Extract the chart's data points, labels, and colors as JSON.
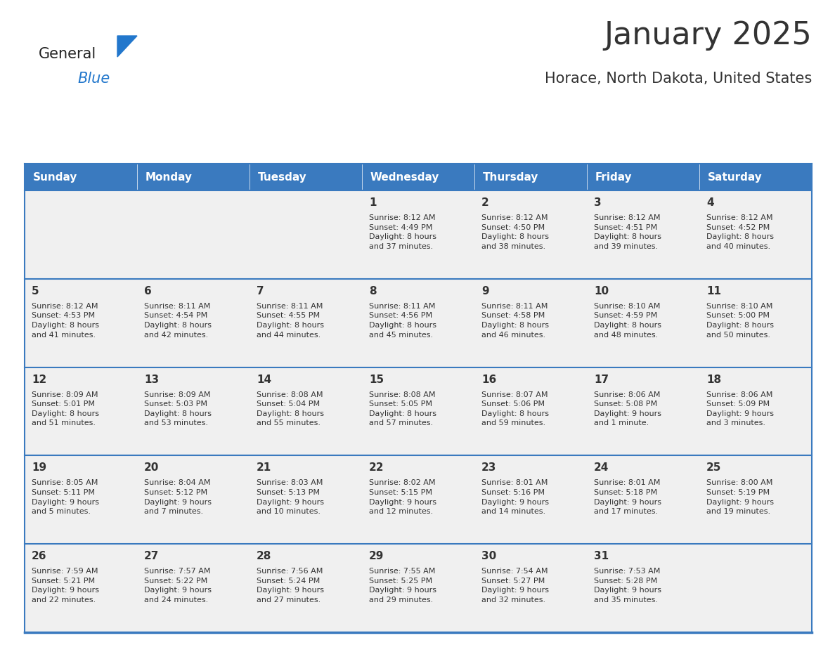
{
  "title": "January 2025",
  "subtitle": "Horace, North Dakota, United States",
  "header_bg": "#3a7abf",
  "header_text": "#ffffff",
  "cell_bg": "#f0f0f0",
  "border_color": "#3a7abf",
  "text_color": "#333333",
  "days_of_week": [
    "Sunday",
    "Monday",
    "Tuesday",
    "Wednesday",
    "Thursday",
    "Friday",
    "Saturday"
  ],
  "weeks": [
    [
      {
        "day": "",
        "info": ""
      },
      {
        "day": "",
        "info": ""
      },
      {
        "day": "",
        "info": ""
      },
      {
        "day": "1",
        "info": "Sunrise: 8:12 AM\nSunset: 4:49 PM\nDaylight: 8 hours\nand 37 minutes."
      },
      {
        "day": "2",
        "info": "Sunrise: 8:12 AM\nSunset: 4:50 PM\nDaylight: 8 hours\nand 38 minutes."
      },
      {
        "day": "3",
        "info": "Sunrise: 8:12 AM\nSunset: 4:51 PM\nDaylight: 8 hours\nand 39 minutes."
      },
      {
        "day": "4",
        "info": "Sunrise: 8:12 AM\nSunset: 4:52 PM\nDaylight: 8 hours\nand 40 minutes."
      }
    ],
    [
      {
        "day": "5",
        "info": "Sunrise: 8:12 AM\nSunset: 4:53 PM\nDaylight: 8 hours\nand 41 minutes."
      },
      {
        "day": "6",
        "info": "Sunrise: 8:11 AM\nSunset: 4:54 PM\nDaylight: 8 hours\nand 42 minutes."
      },
      {
        "day": "7",
        "info": "Sunrise: 8:11 AM\nSunset: 4:55 PM\nDaylight: 8 hours\nand 44 minutes."
      },
      {
        "day": "8",
        "info": "Sunrise: 8:11 AM\nSunset: 4:56 PM\nDaylight: 8 hours\nand 45 minutes."
      },
      {
        "day": "9",
        "info": "Sunrise: 8:11 AM\nSunset: 4:58 PM\nDaylight: 8 hours\nand 46 minutes."
      },
      {
        "day": "10",
        "info": "Sunrise: 8:10 AM\nSunset: 4:59 PM\nDaylight: 8 hours\nand 48 minutes."
      },
      {
        "day": "11",
        "info": "Sunrise: 8:10 AM\nSunset: 5:00 PM\nDaylight: 8 hours\nand 50 minutes."
      }
    ],
    [
      {
        "day": "12",
        "info": "Sunrise: 8:09 AM\nSunset: 5:01 PM\nDaylight: 8 hours\nand 51 minutes."
      },
      {
        "day": "13",
        "info": "Sunrise: 8:09 AM\nSunset: 5:03 PM\nDaylight: 8 hours\nand 53 minutes."
      },
      {
        "day": "14",
        "info": "Sunrise: 8:08 AM\nSunset: 5:04 PM\nDaylight: 8 hours\nand 55 minutes."
      },
      {
        "day": "15",
        "info": "Sunrise: 8:08 AM\nSunset: 5:05 PM\nDaylight: 8 hours\nand 57 minutes."
      },
      {
        "day": "16",
        "info": "Sunrise: 8:07 AM\nSunset: 5:06 PM\nDaylight: 8 hours\nand 59 minutes."
      },
      {
        "day": "17",
        "info": "Sunrise: 8:06 AM\nSunset: 5:08 PM\nDaylight: 9 hours\nand 1 minute."
      },
      {
        "day": "18",
        "info": "Sunrise: 8:06 AM\nSunset: 5:09 PM\nDaylight: 9 hours\nand 3 minutes."
      }
    ],
    [
      {
        "day": "19",
        "info": "Sunrise: 8:05 AM\nSunset: 5:11 PM\nDaylight: 9 hours\nand 5 minutes."
      },
      {
        "day": "20",
        "info": "Sunrise: 8:04 AM\nSunset: 5:12 PM\nDaylight: 9 hours\nand 7 minutes."
      },
      {
        "day": "21",
        "info": "Sunrise: 8:03 AM\nSunset: 5:13 PM\nDaylight: 9 hours\nand 10 minutes."
      },
      {
        "day": "22",
        "info": "Sunrise: 8:02 AM\nSunset: 5:15 PM\nDaylight: 9 hours\nand 12 minutes."
      },
      {
        "day": "23",
        "info": "Sunrise: 8:01 AM\nSunset: 5:16 PM\nDaylight: 9 hours\nand 14 minutes."
      },
      {
        "day": "24",
        "info": "Sunrise: 8:01 AM\nSunset: 5:18 PM\nDaylight: 9 hours\nand 17 minutes."
      },
      {
        "day": "25",
        "info": "Sunrise: 8:00 AM\nSunset: 5:19 PM\nDaylight: 9 hours\nand 19 minutes."
      }
    ],
    [
      {
        "day": "26",
        "info": "Sunrise: 7:59 AM\nSunset: 5:21 PM\nDaylight: 9 hours\nand 22 minutes."
      },
      {
        "day": "27",
        "info": "Sunrise: 7:57 AM\nSunset: 5:22 PM\nDaylight: 9 hours\nand 24 minutes."
      },
      {
        "day": "28",
        "info": "Sunrise: 7:56 AM\nSunset: 5:24 PM\nDaylight: 9 hours\nand 27 minutes."
      },
      {
        "day": "29",
        "info": "Sunrise: 7:55 AM\nSunset: 5:25 PM\nDaylight: 9 hours\nand 29 minutes."
      },
      {
        "day": "30",
        "info": "Sunrise: 7:54 AM\nSunset: 5:27 PM\nDaylight: 9 hours\nand 32 minutes."
      },
      {
        "day": "31",
        "info": "Sunrise: 7:53 AM\nSunset: 5:28 PM\nDaylight: 9 hours\nand 35 minutes."
      },
      {
        "day": "",
        "info": ""
      }
    ]
  ],
  "logo_general_color": "#222222",
  "logo_blue_color": "#2277cc",
  "logo_triangle_color": "#2277cc",
  "title_fontsize": 32,
  "subtitle_fontsize": 15,
  "header_fontsize": 11,
  "day_num_fontsize": 11,
  "info_fontsize": 8
}
